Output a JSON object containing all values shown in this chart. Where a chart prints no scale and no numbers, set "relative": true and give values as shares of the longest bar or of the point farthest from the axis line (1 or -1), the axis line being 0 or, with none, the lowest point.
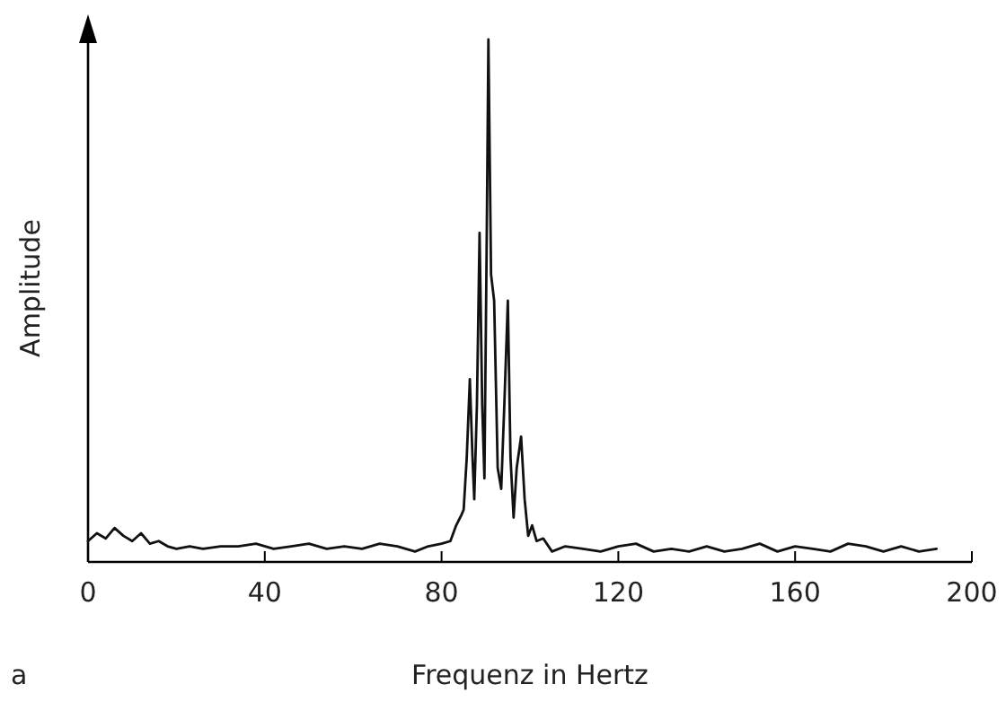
{
  "chart_data": {
    "type": "line",
    "xlabel": "Frequenz in Hertz",
    "ylabel": "Amplitude",
    "relative": true,
    "xlim": [
      0,
      200
    ],
    "xticks": [
      0,
      40,
      80,
      120,
      160,
      200
    ],
    "annotations": [
      "a"
    ],
    "series": [
      {
        "color": "#111111",
        "x": [
          0,
          2,
          4,
          6,
          8,
          10,
          12,
          14,
          16,
          18,
          20,
          23,
          26,
          30,
          34,
          38,
          42,
          46,
          50,
          54,
          58,
          62,
          66,
          70,
          74,
          77,
          80,
          82,
          83.3,
          84.5,
          85,
          85.7,
          86.4,
          87,
          87.4,
          88,
          88.6,
          89.2,
          89.7,
          90.2,
          90.6,
          91.2,
          91.9,
          92.4,
          92.7,
          93.5,
          94.2,
          95,
          95.6,
          96.3,
          97,
          98,
          98.8,
          99.6,
          100.5,
          101.5,
          103,
          105,
          108,
          112,
          116,
          120,
          124,
          128,
          132,
          136,
          140,
          144,
          148,
          152,
          156,
          160,
          164,
          168,
          172,
          176,
          180,
          184,
          188,
          192
        ],
        "values": [
          0.04,
          0.055,
          0.045,
          0.065,
          0.05,
          0.04,
          0.055,
          0.035,
          0.04,
          0.03,
          0.025,
          0.03,
          0.025,
          0.03,
          0.03,
          0.035,
          0.025,
          0.03,
          0.035,
          0.025,
          0.03,
          0.025,
          0.035,
          0.03,
          0.02,
          0.03,
          0.035,
          0.04,
          0.07,
          0.09,
          0.1,
          0.2,
          0.35,
          0.2,
          0.12,
          0.3,
          0.63,
          0.3,
          0.16,
          0.6,
          1,
          0.55,
          0.5,
          0.3,
          0.18,
          0.14,
          0.3,
          0.5,
          0.2,
          0.085,
          0.18,
          0.24,
          0.12,
          0.05,
          0.07,
          0.04,
          0.045,
          0.02,
          0.03,
          0.025,
          0.02,
          0.03,
          0.035,
          0.02,
          0.025,
          0.02,
          0.03,
          0.02,
          0.025,
          0.035,
          0.02,
          0.03,
          0.025,
          0.02,
          0.035,
          0.03,
          0.02,
          0.03,
          0.02,
          0.025
        ]
      }
    ]
  }
}
